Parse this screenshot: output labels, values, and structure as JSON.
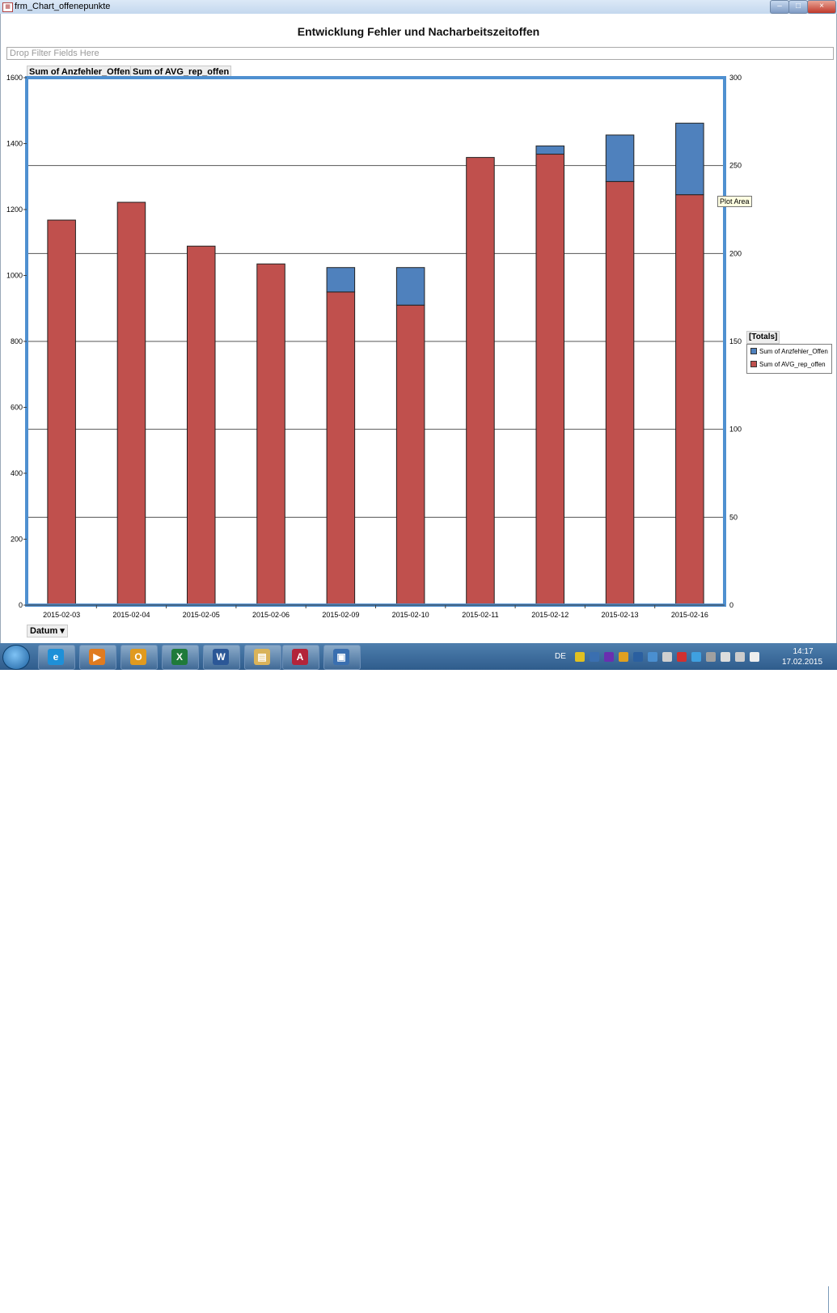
{
  "window": {
    "title": "frm_Chart_offenepunkte",
    "icon": "access-form-icon",
    "buttons": {
      "minimize": "–",
      "maximize": "□",
      "close": "×"
    }
  },
  "pivot": {
    "filter_placeholder": "Drop Filter Fields Here",
    "data_fields": [
      "Sum of Anzfehler_Offen",
      "Sum of AVG_rep_offen"
    ],
    "category_field": "Datum",
    "legend_title": "[Totals]",
    "tooltip": "Plot Area"
  },
  "chart_data": {
    "type": "bar",
    "stacked": true,
    "title": "Entwicklung Fehler und Nacharbeitszeitoffen",
    "categories": [
      "2015-02-03",
      "2015-02-04",
      "2015-02-05",
      "2015-02-06",
      "2015-02-09",
      "2015-02-10",
      "2015-02-11",
      "2015-02-12",
      "2015-02-13",
      "2015-02-16"
    ],
    "series": [
      {
        "name": "Sum of AVG_rep_offen",
        "color": "#c0504d",
        "values": [
          1168,
          1222,
          1089,
          1035,
          950,
          910,
          1358,
          1368,
          1285,
          1245
        ]
      },
      {
        "name": "Sum of Anzfehler_Offen",
        "color": "#4f81bd",
        "values": [
          0,
          0,
          0,
          0,
          74,
          114,
          0,
          25,
          141,
          217
        ]
      }
    ],
    "y_left": {
      "min": 0,
      "max": 1600,
      "ticks": [
        0,
        200,
        400,
        600,
        800,
        1000,
        1200,
        1400,
        1600
      ]
    },
    "y_right": {
      "min": 0,
      "max": 300,
      "ticks": [
        0,
        50,
        100,
        150,
        200,
        250,
        300
      ]
    },
    "gridlines": "right-axis major",
    "legend_position": "right"
  },
  "taskbar": {
    "apps": [
      {
        "name": "internet-explorer",
        "glyph": "e",
        "color": "#1e90d8"
      },
      {
        "name": "media-player",
        "glyph": "▶",
        "color": "#e07b1f"
      },
      {
        "name": "outlook",
        "glyph": "O",
        "color": "#e09a1f"
      },
      {
        "name": "excel",
        "glyph": "X",
        "color": "#1f7a3a"
      },
      {
        "name": "word",
        "glyph": "W",
        "color": "#2b5797"
      },
      {
        "name": "explorer",
        "glyph": "▤",
        "color": "#d9b35a"
      },
      {
        "name": "access",
        "glyph": "A",
        "color": "#b3243a"
      },
      {
        "name": "remote-app",
        "glyph": "▣",
        "color": "#3a6fb0"
      }
    ],
    "language": "DE",
    "time": "14:17",
    "date": "17.02.2015"
  }
}
